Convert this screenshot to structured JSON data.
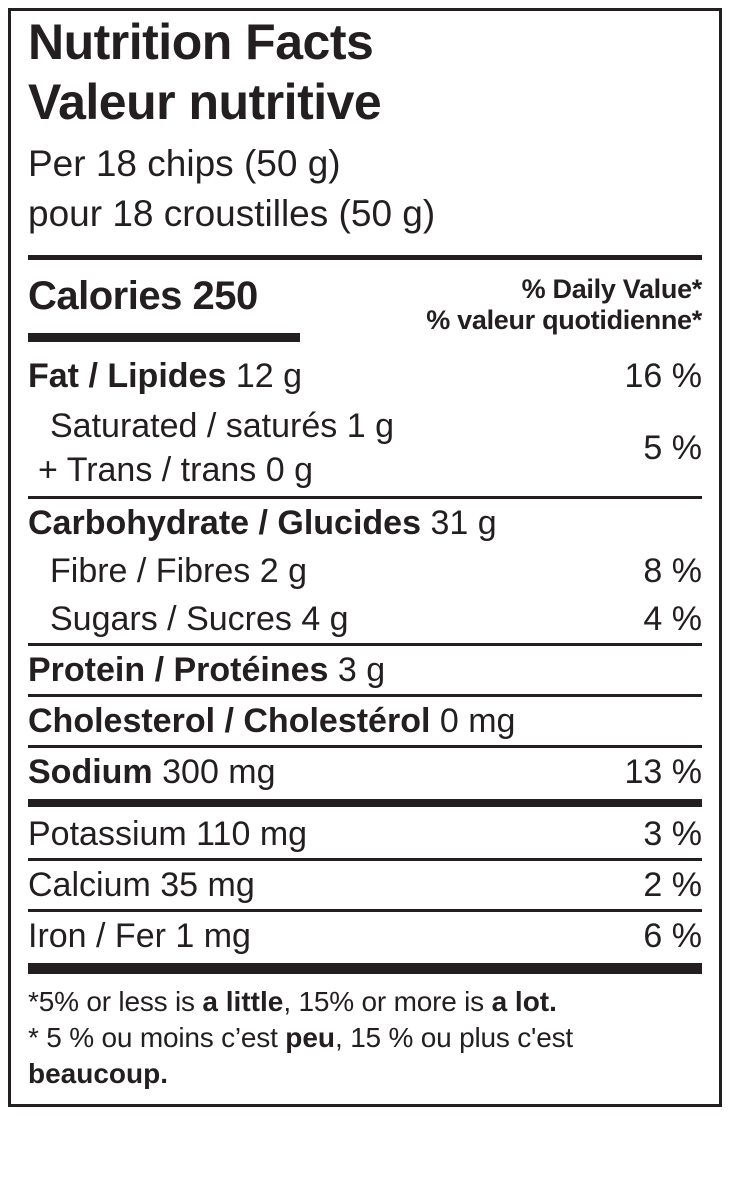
{
  "colors": {
    "ink": "#231f20",
    "paper": "#ffffff"
  },
  "header": {
    "title_en": "Nutrition Facts",
    "title_fr": "Valeur nutritive",
    "serving_en": "Per 18 chips (50 g)",
    "serving_fr": "pour 18 croustilles (50 g)"
  },
  "calories": {
    "label": "Calories",
    "value": "250"
  },
  "daily_value_header": {
    "en": "% Daily Value*",
    "fr": "% valeur quotidienne*"
  },
  "nutrients": {
    "fat": {
      "name": "Fat / Lipides",
      "amount": "12 g",
      "dv": "16 %"
    },
    "saturated_trans": {
      "line1": "Saturated / saturés 1 g",
      "line2": "+ Trans / trans 0 g",
      "dv": "5 %"
    },
    "carbohydrate": {
      "name": "Carbohydrate / Glucides",
      "amount": "31 g"
    },
    "fibre": {
      "name": "Fibre / Fibres 2 g",
      "dv": "8 %"
    },
    "sugars": {
      "name": "Sugars / Sucres 4 g",
      "dv": "4 %"
    },
    "protein": {
      "name": "Protein / Protéines",
      "amount": "3 g"
    },
    "cholesterol": {
      "name": "Cholesterol / Cholestérol",
      "amount": "0 mg"
    },
    "sodium": {
      "name": "Sodium",
      "amount": "300 mg",
      "dv": "13 %"
    },
    "potassium": {
      "name": "Potassium 110 mg",
      "dv": "3 %"
    },
    "calcium": {
      "name": "Calcium 35 mg",
      "dv": "2 %"
    },
    "iron": {
      "name": "Iron / Fer 1 mg",
      "dv": "6 %"
    }
  },
  "footnotes": {
    "en": {
      "t1": "*5% or less is ",
      "b1": "a little",
      "t2": ", 15% or more is ",
      "b2": "a lot."
    },
    "fr": {
      "t1": "* 5 % ou moins c’est ",
      "b1": "peu",
      "t2": ", 15 % ou plus c'est ",
      "b2": "beaucoup."
    }
  }
}
